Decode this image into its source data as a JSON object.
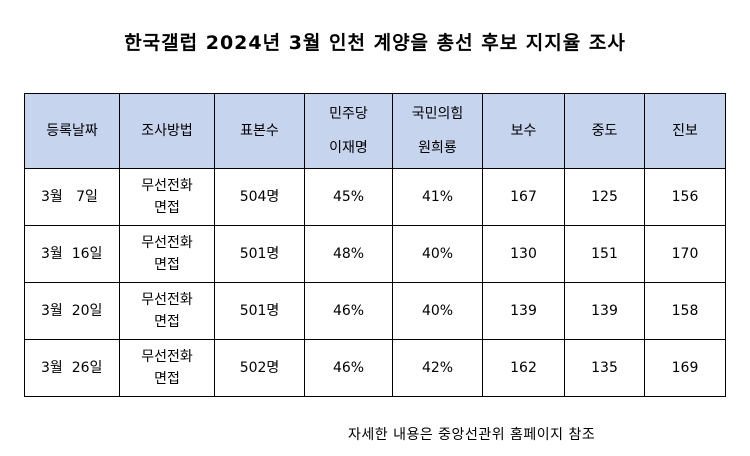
{
  "title": "한국갤럽 2024년 3월 인천 계양을 총선 후보 지지율 조사",
  "table": {
    "headers": [
      {
        "line1": "등록날짜",
        "line2": ""
      },
      {
        "line1": "조사방법",
        "line2": ""
      },
      {
        "line1": "표본수",
        "line2": ""
      },
      {
        "line1": "민주당",
        "line2": "이재명"
      },
      {
        "line1": "국민의힘",
        "line2": "원희룡"
      },
      {
        "line1": "보수",
        "line2": ""
      },
      {
        "line1": "중도",
        "line2": ""
      },
      {
        "line1": "진보",
        "line2": ""
      }
    ],
    "rows": [
      {
        "date": "3월   7일",
        "method1": "무선전화",
        "method2": "면접",
        "sample": "504명",
        "lee": "45%",
        "won": "41%",
        "conservative": "167",
        "moderate": "125",
        "progressive": "156"
      },
      {
        "date": "3월  16일",
        "method1": "무선전화",
        "method2": "면접",
        "sample": "501명",
        "lee": "48%",
        "won": "40%",
        "conservative": "130",
        "moderate": "151",
        "progressive": "170"
      },
      {
        "date": "3월  20일",
        "method1": "무선전화",
        "method2": "면접",
        "sample": "501명",
        "lee": "46%",
        "won": "40%",
        "conservative": "139",
        "moderate": "139",
        "progressive": "158"
      },
      {
        "date": "3월  26일",
        "method1": "무선전화",
        "method2": "면접",
        "sample": "502명",
        "lee": "46%",
        "won": "42%",
        "conservative": "162",
        "moderate": "135",
        "progressive": "169"
      }
    ]
  },
  "footnote": "자세한 내용은 중앙선관위 홈페이지 참조",
  "colors": {
    "header_background": "#c6d4ee",
    "border": "#000000"
  }
}
